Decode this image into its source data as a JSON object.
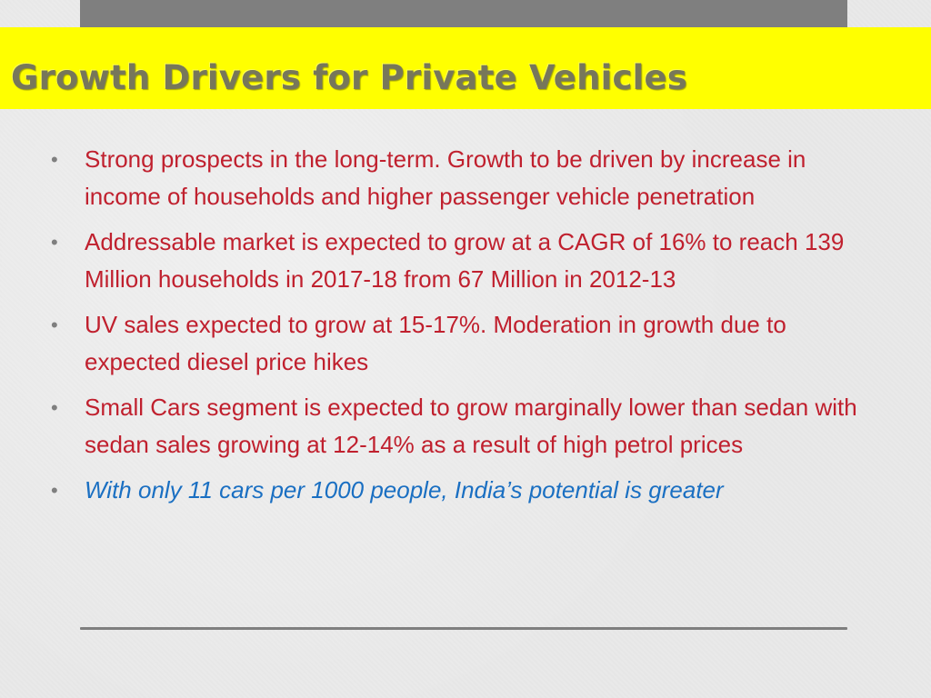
{
  "slide": {
    "title": "Growth Drivers for Private Vehicles",
    "bullet_marker": "•",
    "bullets": [
      "Strong prospects in the long-term. Growth to be driven by increase in income of households and higher passenger vehicle penetration",
      "Addressable market is expected to grow at a CAGR of 16% to reach 139 Million households in 2017-18 from 67 Million in 2012-13",
      "UV sales expected to grow at 15-17%. Moderation in growth due to expected diesel price hikes",
      "Small Cars segment is expected to grow marginally lower than sedan with sedan sales growing at 12-14% as a result of high petrol prices",
      "With only 11 cars per 1000 people, India’s potential is greater"
    ]
  },
  "colors": {
    "background": "#e9e9e9",
    "top_bar": "#7f7f7f",
    "title_band": "#ffff00",
    "title_text": "#77775a",
    "bullet_text": "#c0202e",
    "highlight_text": "#1a6fc2",
    "divider": "#7f7f7f"
  }
}
